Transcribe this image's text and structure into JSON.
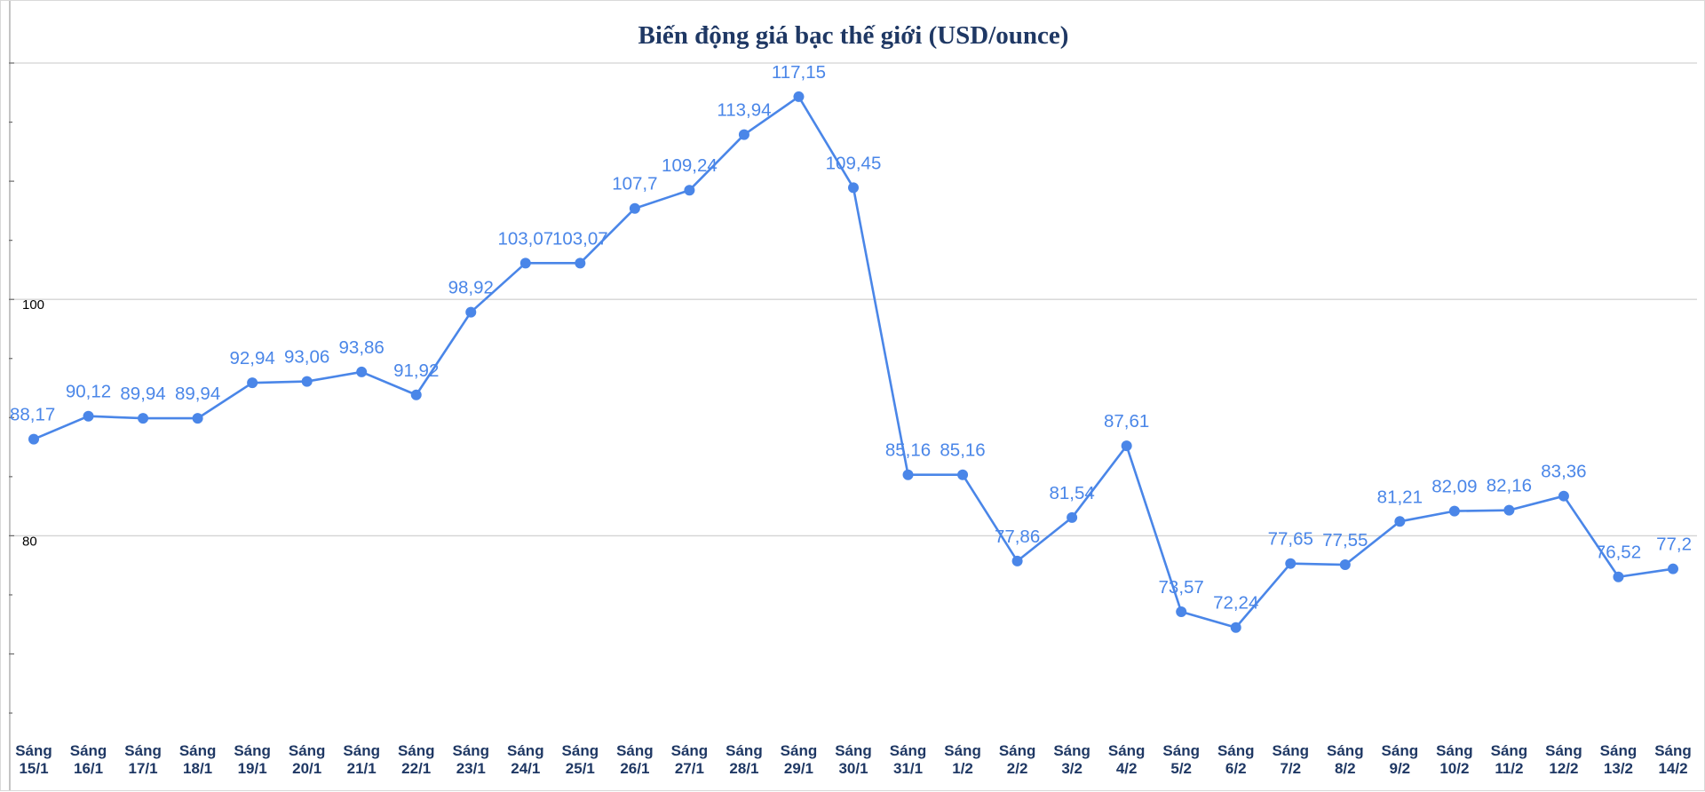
{
  "chart_data": {
    "type": "line",
    "title": "Biến động giá bạc thế giới (USD/ounce)",
    "xlabel": "",
    "ylabel": "",
    "ylim": [
      62,
      120
    ],
    "ytick_labels": [
      {
        "value": 100,
        "label": "100"
      },
      {
        "value": 80,
        "label": "80"
      }
    ],
    "grid": true,
    "legend": "none",
    "color": "#4a86e8",
    "categories": [
      {
        "line1": "Sáng",
        "line2": "15/1"
      },
      {
        "line1": "Sáng",
        "line2": "16/1"
      },
      {
        "line1": "Sáng",
        "line2": "17/1"
      },
      {
        "line1": "Sáng",
        "line2": "18/1"
      },
      {
        "line1": "Sáng",
        "line2": "19/1"
      },
      {
        "line1": "Sáng",
        "line2": "20/1"
      },
      {
        "line1": "Sáng",
        "line2": "21/1"
      },
      {
        "line1": "Sáng",
        "line2": "22/1"
      },
      {
        "line1": "Sáng",
        "line2": "23/1"
      },
      {
        "line1": "Sáng",
        "line2": "24/1"
      },
      {
        "line1": "Sáng",
        "line2": "25/1"
      },
      {
        "line1": "Sáng",
        "line2": "26/1"
      },
      {
        "line1": "Sáng",
        "line2": "27/1"
      },
      {
        "line1": "Sáng",
        "line2": "28/1"
      },
      {
        "line1": "Sáng",
        "line2": "29/1"
      },
      {
        "line1": "Sáng",
        "line2": "30/1"
      },
      {
        "line1": "Sáng",
        "line2": "31/1"
      },
      {
        "line1": "Sáng",
        "line2": "1/2"
      },
      {
        "line1": "Sáng",
        "line2": "2/2"
      },
      {
        "line1": "Sáng",
        "line2": "3/2"
      },
      {
        "line1": "Sáng",
        "line2": "4/2"
      },
      {
        "line1": "Sáng",
        "line2": "5/2"
      },
      {
        "line1": "Sáng",
        "line2": "6/2"
      },
      {
        "line1": "Sáng",
        "line2": "7/2"
      },
      {
        "line1": "Sáng",
        "line2": "8/2"
      },
      {
        "line1": "Sáng",
        "line2": "9/2"
      },
      {
        "line1": "Sáng",
        "line2": "10/2"
      },
      {
        "line1": "Sáng",
        "line2": "11/2"
      },
      {
        "line1": "Sáng",
        "line2": "12/2"
      },
      {
        "line1": "Sáng",
        "line2": "13/2"
      },
      {
        "line1": "Sáng",
        "line2": "14/2"
      }
    ],
    "series": [
      {
        "name": "Giá bạc",
        "values": [
          88.17,
          90.12,
          89.94,
          89.94,
          92.94,
          93.06,
          93.86,
          91.92,
          98.92,
          103.07,
          103.07,
          107.7,
          109.24,
          113.94,
          117.15,
          109.45,
          85.16,
          85.16,
          77.86,
          81.54,
          87.61,
          73.57,
          72.24,
          77.65,
          77.55,
          81.21,
          82.09,
          82.16,
          83.36,
          76.52,
          77.2
        ],
        "value_labels": [
          "88,17",
          "90,12",
          "89,94",
          "89,94",
          "92,94",
          "93,06",
          "93,86",
          "91,92",
          "98,92",
          "103,07",
          "103,07",
          "107,7",
          "109,24",
          "113,94",
          "117,15",
          "109,45",
          "85,16",
          "85,16",
          "77,86",
          "81,54",
          "87,61",
          "73,57",
          "72,24",
          "77,65",
          "77,55",
          "81,21",
          "82,09",
          "82,16",
          "83,36",
          "76,52",
          "77,2"
        ]
      }
    ]
  }
}
